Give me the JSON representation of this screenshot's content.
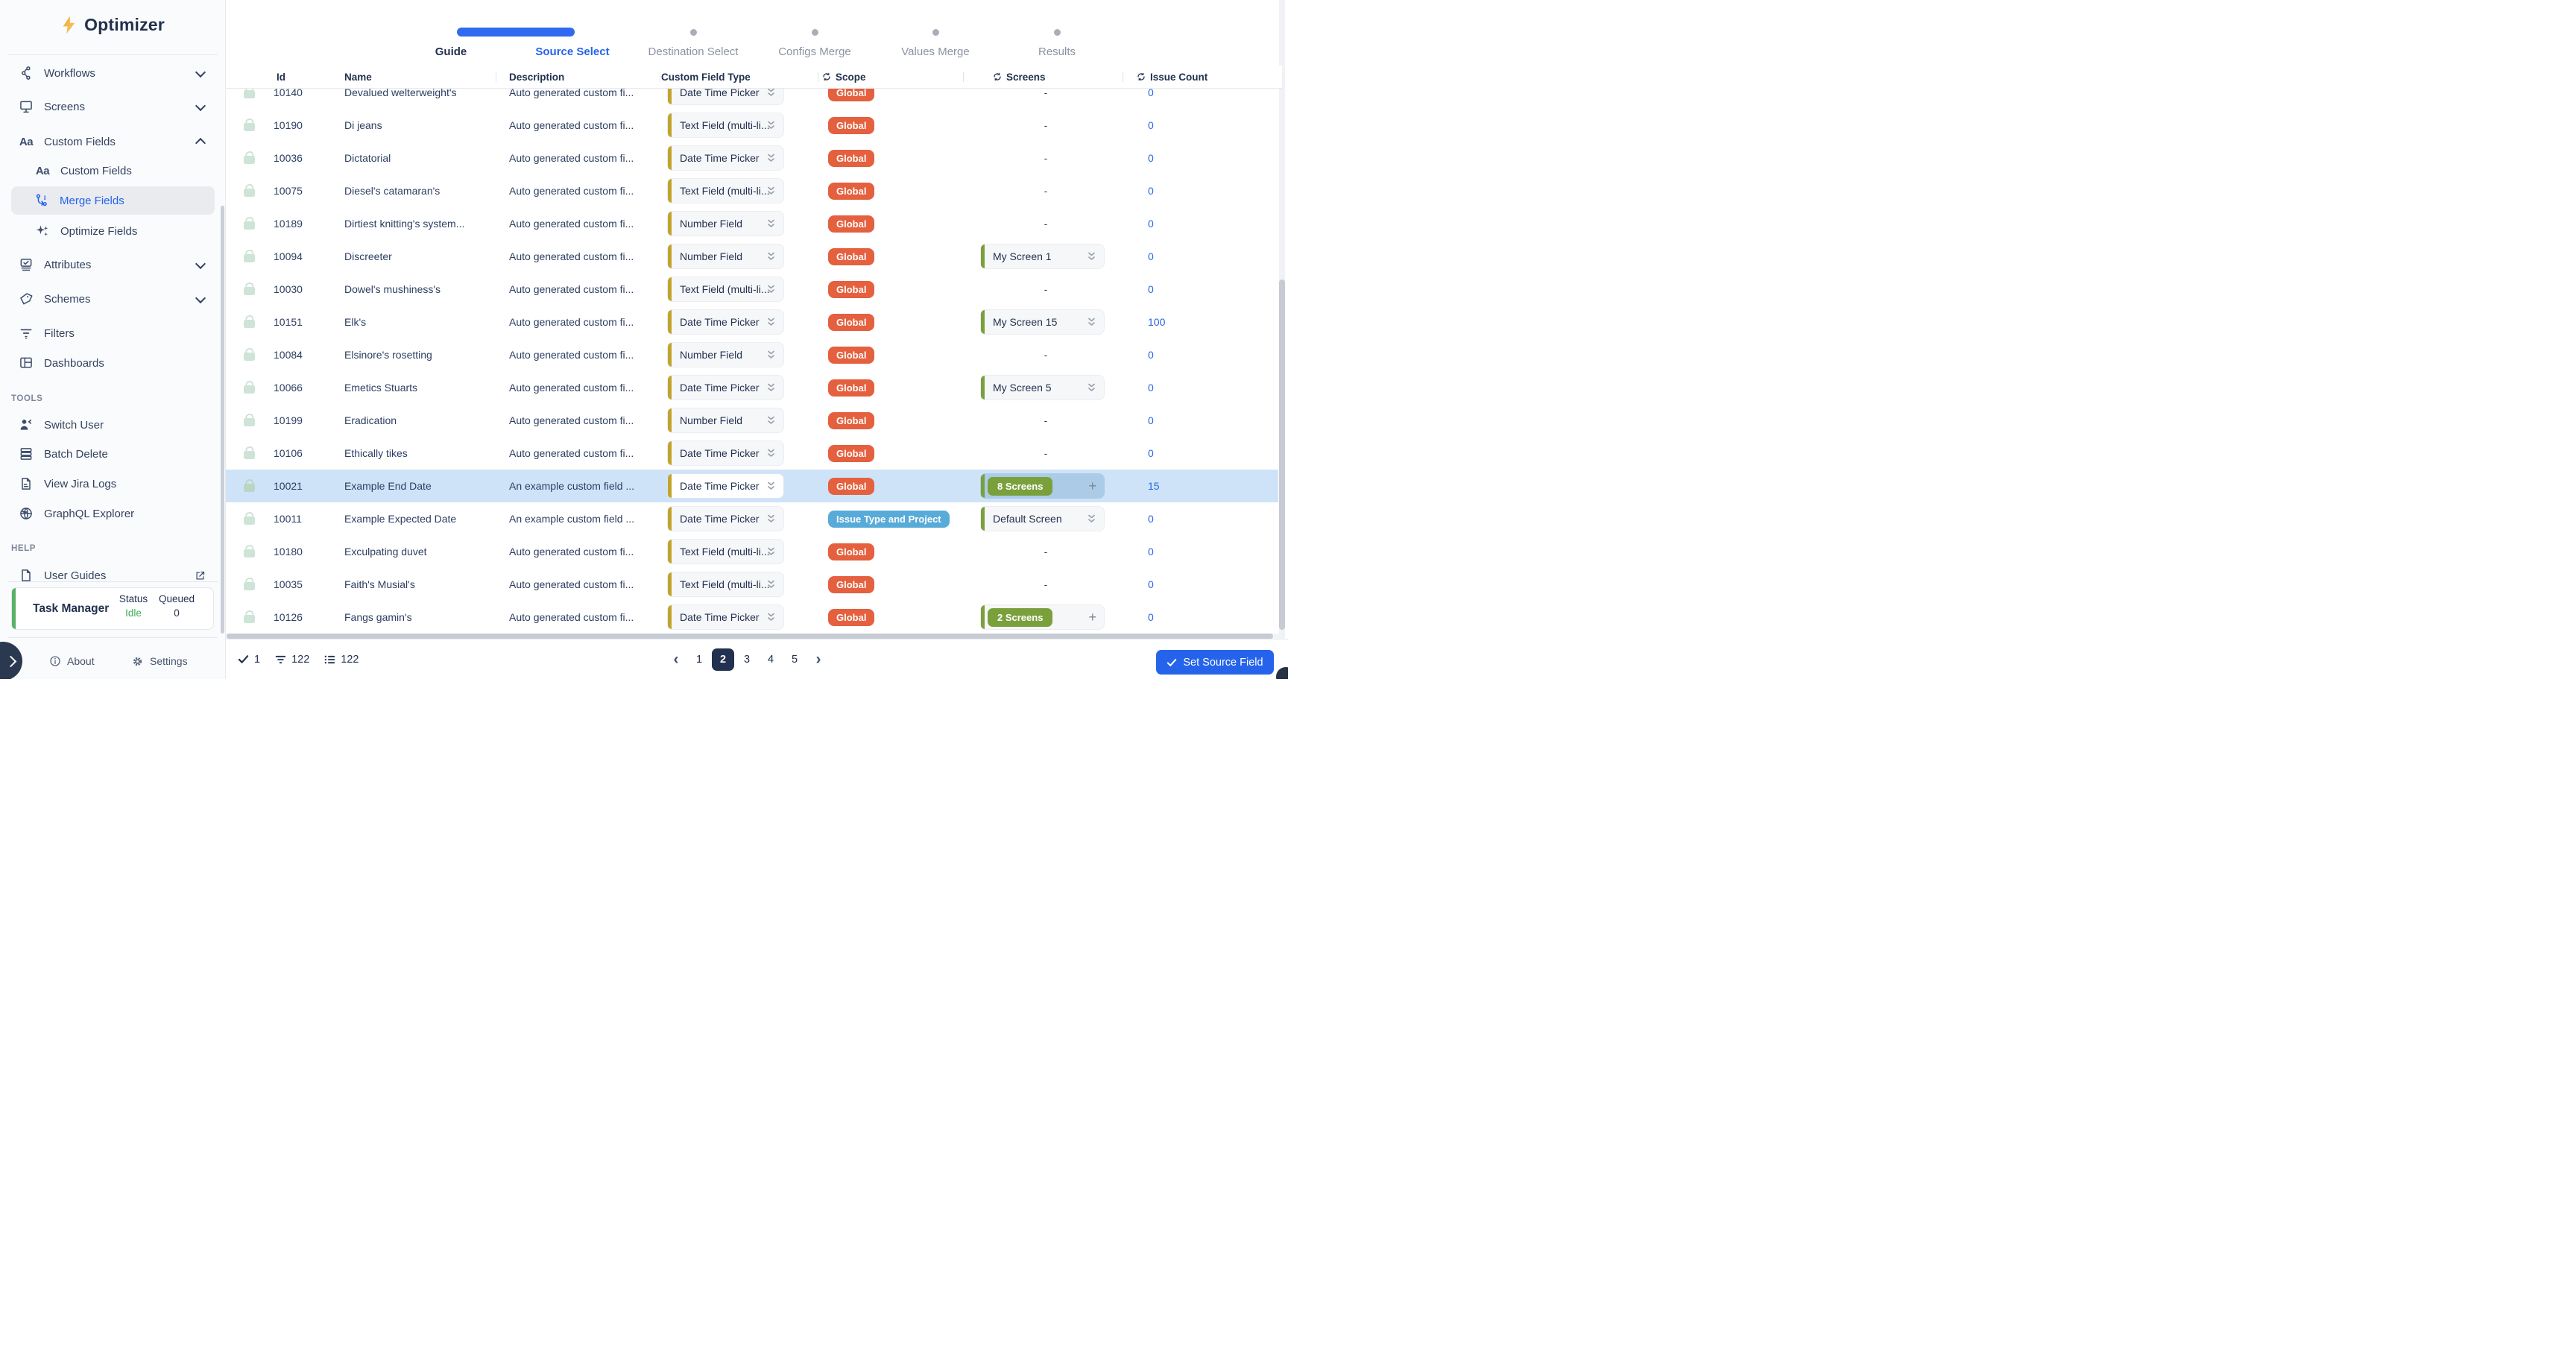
{
  "app": {
    "name": "Optimizer"
  },
  "colors": {
    "accent_blue": "#2563eb",
    "progress_blue": "#2f6bf0",
    "navy": "#22314f",
    "row_highlight": "#cfe3f8",
    "scope_global": "#e4603e",
    "scope_itp": "#58abd8",
    "screens_green": "#7aa03c",
    "type_accent": "#c0a42e",
    "task_green": "#57b166",
    "idle_green": "#3fae5a"
  },
  "sidebar": {
    "logo_text": "Optimizer",
    "aa_glyph": "Aa",
    "nav": [
      {
        "label": "Workflows"
      },
      {
        "label": "Screens"
      },
      {
        "label": "Custom Fields"
      },
      {
        "label": "Custom Fields"
      },
      {
        "label": "Merge Fields"
      },
      {
        "label": "Optimize Fields"
      },
      {
        "label": "Attributes"
      },
      {
        "label": "Schemes"
      },
      {
        "label": "Filters"
      },
      {
        "label": "Dashboards"
      }
    ],
    "tools_label": "TOOLS",
    "tools": [
      {
        "label": "Switch User"
      },
      {
        "label": "Batch Delete"
      },
      {
        "label": "View Jira Logs"
      },
      {
        "label": "GraphQL Explorer"
      }
    ],
    "help_label": "HELP",
    "help": [
      {
        "label": "User Guides"
      }
    ],
    "task_manager": {
      "title": "Task Manager",
      "status_label": "Status",
      "status_value": "Idle",
      "queued_label": "Queued",
      "queued_value": "0"
    },
    "about_label": "About",
    "settings_label": "Settings"
  },
  "stepper": {
    "steps": [
      {
        "label": "Guide",
        "state": "done"
      },
      {
        "label": "Source Select",
        "state": "current"
      },
      {
        "label": "Destination Select",
        "state": "upcoming"
      },
      {
        "label": "Configs Merge",
        "state": "upcoming"
      },
      {
        "label": "Values Merge",
        "state": "upcoming"
      },
      {
        "label": "Results",
        "state": "upcoming"
      }
    ]
  },
  "table": {
    "columns": [
      {
        "label": "Id"
      },
      {
        "label": "Name"
      },
      {
        "label": "Description"
      },
      {
        "label": "Custom Field Type"
      },
      {
        "label": "Scope",
        "sync": true
      },
      {
        "label": "Screens",
        "sync": true
      },
      {
        "label": "Issue Count",
        "sync": true
      }
    ],
    "screens_dash": "-",
    "plus_label": "+",
    "rows": [
      {
        "id": "10140",
        "name": "Devalued welterweight's",
        "description": "Auto generated custom fi...",
        "type": "Date Time Picker",
        "scope": "Global",
        "screens": {
          "kind": "none"
        },
        "issues": "0",
        "highlighted": false
      },
      {
        "id": "10190",
        "name": "Di jeans",
        "description": "Auto generated custom fi...",
        "type": "Text Field (multi-li...",
        "scope": "Global",
        "screens": {
          "kind": "none"
        },
        "issues": "0",
        "highlighted": false
      },
      {
        "id": "10036",
        "name": "Dictatorial",
        "description": "Auto generated custom fi...",
        "type": "Date Time Picker",
        "scope": "Global",
        "screens": {
          "kind": "none"
        },
        "issues": "0",
        "highlighted": false
      },
      {
        "id": "10075",
        "name": "Diesel's catamaran's",
        "description": "Auto generated custom fi...",
        "type": "Text Field (multi-li...",
        "scope": "Global",
        "screens": {
          "kind": "none"
        },
        "issues": "0",
        "highlighted": false
      },
      {
        "id": "10189",
        "name": "Dirtiest knitting's system...",
        "description": "Auto generated custom fi...",
        "type": "Number Field",
        "scope": "Global",
        "screens": {
          "kind": "none"
        },
        "issues": "0",
        "highlighted": false
      },
      {
        "id": "10094",
        "name": "Discreeter",
        "description": "Auto generated custom fi...",
        "type": "Number Field",
        "scope": "Global",
        "screens": {
          "kind": "select",
          "label": "My Screen 1"
        },
        "issues": "0",
        "highlighted": false
      },
      {
        "id": "10030",
        "name": "Dowel's mushiness's",
        "description": "Auto generated custom fi...",
        "type": "Text Field (multi-li...",
        "scope": "Global",
        "screens": {
          "kind": "none"
        },
        "issues": "0",
        "highlighted": false
      },
      {
        "id": "10151",
        "name": "Elk's",
        "description": "Auto generated custom fi...",
        "type": "Date Time Picker",
        "scope": "Global",
        "screens": {
          "kind": "select",
          "label": "My Screen 15"
        },
        "issues": "100",
        "highlighted": false
      },
      {
        "id": "10084",
        "name": "Elsinore's rosetting",
        "description": "Auto generated custom fi...",
        "type": "Number Field",
        "scope": "Global",
        "screens": {
          "kind": "none"
        },
        "issues": "0",
        "highlighted": false
      },
      {
        "id": "10066",
        "name": "Emetics Stuarts",
        "description": "Auto generated custom fi...",
        "type": "Date Time Picker",
        "scope": "Global",
        "screens": {
          "kind": "select",
          "label": "My Screen 5"
        },
        "issues": "0",
        "highlighted": false
      },
      {
        "id": "10199",
        "name": "Eradication",
        "description": "Auto generated custom fi...",
        "type": "Number Field",
        "scope": "Global",
        "screens": {
          "kind": "none"
        },
        "issues": "0",
        "highlighted": false
      },
      {
        "id": "10106",
        "name": "Ethically tikes",
        "description": "Auto generated custom fi...",
        "type": "Date Time Picker",
        "scope": "Global",
        "screens": {
          "kind": "none"
        },
        "issues": "0",
        "highlighted": false
      },
      {
        "id": "10021",
        "name": "Example End Date",
        "description": "An example custom field ...",
        "type": "Date Time Picker",
        "scope": "Global",
        "screens": {
          "kind": "pill",
          "label": "8 Screens"
        },
        "issues": "15",
        "highlighted": true
      },
      {
        "id": "10011",
        "name": "Example Expected Date",
        "description": "An example custom field ...",
        "type": "Date Time Picker",
        "scope": "Issue Type and Project",
        "screens": {
          "kind": "select",
          "label": "Default Screen"
        },
        "issues": "0",
        "highlighted": false
      },
      {
        "id": "10180",
        "name": "Exculpating duvet",
        "description": "Auto generated custom fi...",
        "type": "Text Field (multi-li...",
        "scope": "Global",
        "screens": {
          "kind": "none"
        },
        "issues": "0",
        "highlighted": false
      },
      {
        "id": "10035",
        "name": "Faith's Musial's",
        "description": "Auto generated custom fi...",
        "type": "Text Field (multi-li...",
        "scope": "Global",
        "screens": {
          "kind": "none"
        },
        "issues": "0",
        "highlighted": false
      },
      {
        "id": "10126",
        "name": "Fangs gamin's",
        "description": "Auto generated custom fi...",
        "type": "Date Time Picker",
        "scope": "Global",
        "screens": {
          "kind": "pill",
          "label": "2 Screens"
        },
        "issues": "0",
        "highlighted": false
      }
    ]
  },
  "footer": {
    "selected_count": "1",
    "filter_count": "122",
    "list_count": "122",
    "prev_label": "‹",
    "next_label": "›",
    "pages": [
      "1",
      "2",
      "3",
      "4",
      "5"
    ],
    "active_page": "2",
    "submit_label": "Set Source Field"
  }
}
